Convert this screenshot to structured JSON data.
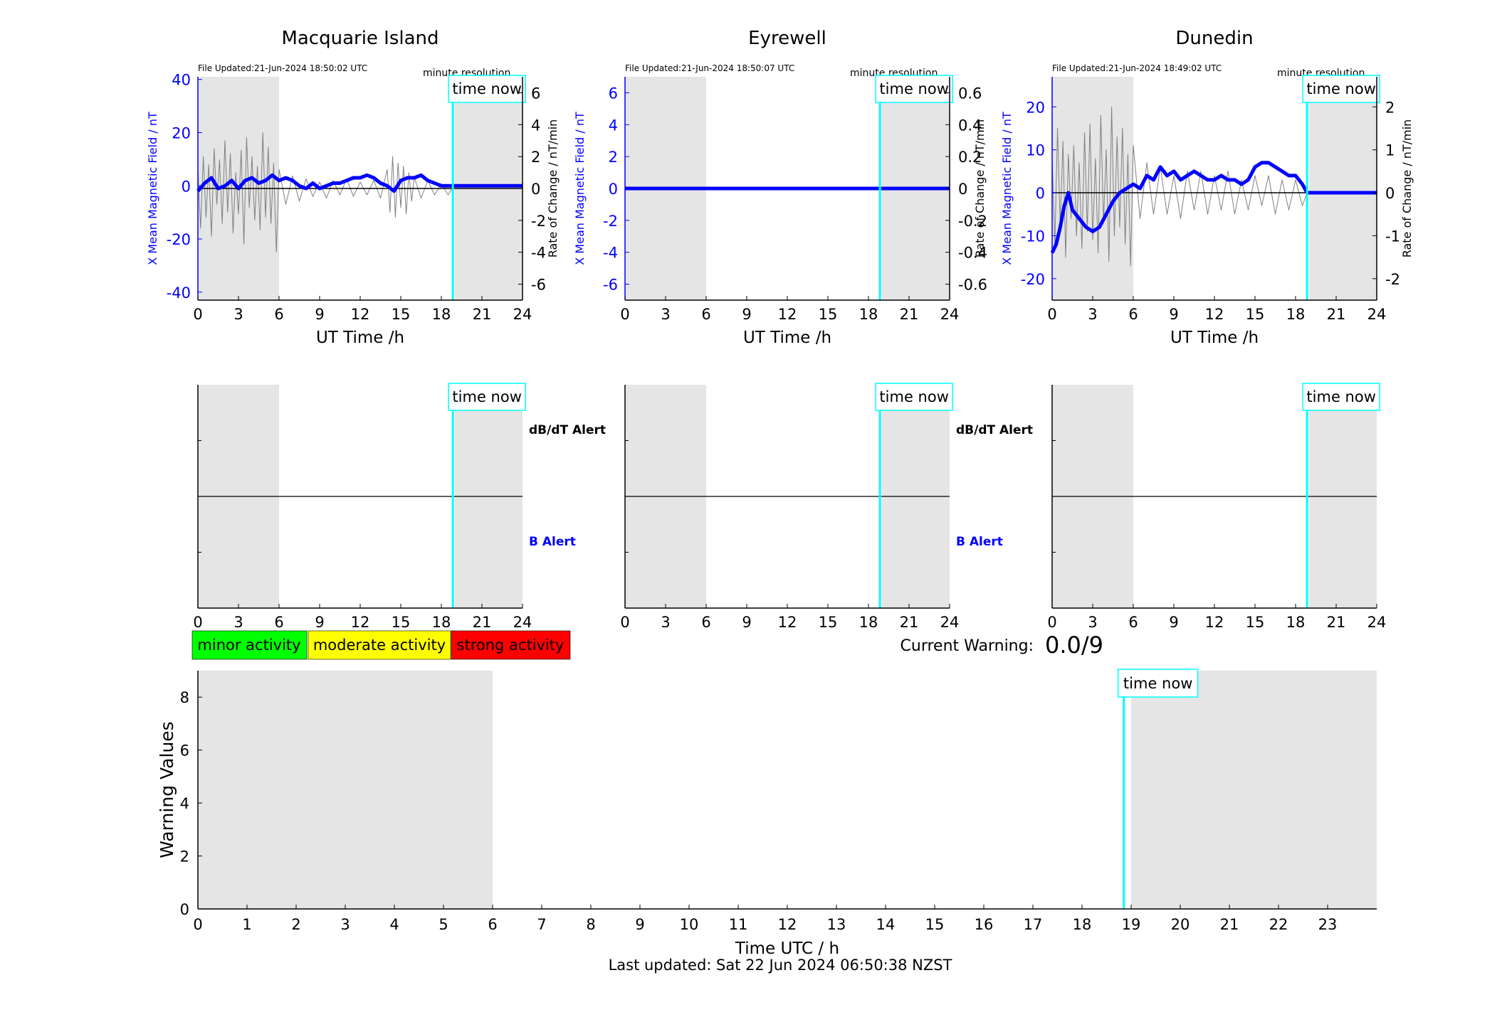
{
  "colors": {
    "field": "#0000ff",
    "rate": "#808080",
    "now_line": "#00ffff",
    "night_shade": "#e5e5e5",
    "minor": "#00ff00",
    "moderate": "#ffff00",
    "strong": "#ff0000"
  },
  "common": {
    "time_now_label": "time now",
    "minute_resolution": "minute resolution",
    "x_label": "UT Time /h",
    "left_y_label": "X Mean Magnetic Field / nT",
    "right_y_label": "Rate of Change / nT/min",
    "dbdt_alert_label": "dB/dT Alert",
    "b_alert_label": "B Alert"
  },
  "legend": {
    "minor": "minor activity",
    "moderate": "moderate activity",
    "strong": "strong activity"
  },
  "current_warning": {
    "label": "Current Warning:",
    "value": "0.0/9"
  },
  "footer": {
    "last_updated": "Last updated: Sat 22 Jun 2024 06:50:38 NZST"
  },
  "chart_data": [
    {
      "type": "line",
      "title": "Macquarie Island",
      "file_updated": "File Updated:21-Jun-2024 18:50:02 UTC",
      "xlabel": "UT Time /h",
      "ylabel": "X Mean Magnetic Field / nT",
      "ylabel_right": "Rate of Change / nT/min",
      "xlim": [
        0,
        24
      ],
      "xticks": [
        0,
        3,
        6,
        9,
        12,
        15,
        18,
        21,
        24
      ],
      "ylim": [
        -43,
        41
      ],
      "yticks": [
        -40,
        -20,
        0,
        20,
        40
      ],
      "ylim_right": [
        -7,
        7
      ],
      "yticks_right": [
        -6,
        -4,
        -2,
        0,
        2,
        4,
        6
      ],
      "night_bands": [
        [
          0,
          6
        ],
        [
          19,
          24
        ]
      ],
      "time_now": 18.85,
      "series": [
        {
          "name": "X Mean Magnetic Field / nT",
          "x": [
            0,
            0.5,
            1,
            1.5,
            2,
            2.5,
            3,
            3.5,
            4,
            4.5,
            5,
            5.5,
            6,
            6.5,
            7,
            7.5,
            8,
            8.5,
            9,
            9.5,
            10,
            10.5,
            11,
            11.5,
            12,
            12.5,
            13,
            13.5,
            14,
            14.5,
            15,
            15.5,
            16,
            16.5,
            17,
            17.5,
            18,
            18.5,
            18.85,
            24
          ],
          "values": [
            -2,
            1,
            3,
            -1,
            0,
            2,
            -1,
            2,
            3,
            1,
            2,
            4,
            2,
            3,
            2,
            0,
            -1,
            1,
            -1,
            0,
            1,
            1,
            2,
            3,
            3,
            4,
            3,
            1,
            0,
            -2,
            2,
            3,
            3,
            4,
            2,
            1,
            0,
            0,
            0,
            0
          ]
        },
        {
          "name": "Rate of Change / nT/min",
          "x": [
            0,
            0.2,
            0.4,
            0.6,
            0.8,
            1,
            1.2,
            1.4,
            1.6,
            1.8,
            2,
            2.2,
            2.4,
            2.6,
            2.8,
            3,
            3.2,
            3.4,
            3.6,
            3.8,
            4,
            4.2,
            4.4,
            4.6,
            4.8,
            5,
            5.2,
            5.4,
            5.6,
            5.8,
            6,
            6.5,
            7,
            7.5,
            8,
            8.5,
            9,
            9.5,
            10,
            10.5,
            11,
            11.5,
            12,
            12.5,
            13,
            13.5,
            14,
            14.2,
            14.4,
            14.6,
            14.8,
            15,
            15.2,
            15.4,
            15.6,
            15.8,
            16,
            16.5,
            17,
            17.5,
            18,
            18.5,
            18.85
          ],
          "values": [
            1.2,
            -2.5,
            2.0,
            -1.8,
            1.5,
            -3.0,
            2.5,
            -1.0,
            1.8,
            -2.2,
            3.0,
            -1.5,
            2.2,
            -2.8,
            1.0,
            -1.6,
            2.4,
            -3.5,
            3.2,
            -1.2,
            2.0,
            -2.0,
            1.4,
            -2.6,
            3.5,
            -1.8,
            2.6,
            -2.2,
            1.6,
            -4.0,
            1.2,
            -1.0,
            0.8,
            -0.8,
            0.6,
            -0.5,
            0.4,
            -0.6,
            0.5,
            -0.4,
            0.6,
            -0.5,
            0.4,
            -0.4,
            0.5,
            -0.6,
            1.2,
            -1.5,
            2.0,
            -1.8,
            1.6,
            -1.2,
            1.4,
            -1.6,
            1.0,
            -0.8,
            0.7,
            -0.6,
            0.5,
            -0.4,
            0.3,
            -0.4,
            0.1
          ]
        }
      ]
    },
    {
      "type": "line",
      "title": "Eyrewell",
      "file_updated": "File Updated:21-Jun-2024 18:50:07 UTC",
      "xlabel": "UT Time /h",
      "ylabel": "X Mean Magnetic Field / nT",
      "ylabel_right": "Rate of Change / nT/min",
      "xlim": [
        0,
        24
      ],
      "xticks": [
        0,
        3,
        6,
        9,
        12,
        15,
        18,
        21,
        24
      ],
      "ylim": [
        -7,
        7
      ],
      "yticks": [
        -6,
        -4,
        -2,
        0,
        2,
        4,
        6
      ],
      "ylim_right": [
        -0.7,
        0.7
      ],
      "yticks_right": [
        -0.6,
        -0.4,
        -0.2,
        0,
        0.2,
        0.4,
        0.6
      ],
      "night_bands": [
        [
          0,
          6
        ],
        [
          19,
          24
        ]
      ],
      "time_now": 18.85,
      "series": [
        {
          "name": "X Mean Magnetic Field / nT",
          "x": [
            0,
            24
          ],
          "values": [
            0,
            0
          ]
        },
        {
          "name": "Rate of Change / nT/min",
          "x": [
            0,
            24
          ],
          "values": [
            0,
            0
          ]
        }
      ]
    },
    {
      "type": "line",
      "title": "Dunedin",
      "file_updated": "File Updated:21-Jun-2024 18:49:02 UTC",
      "xlabel": "UT Time /h",
      "ylabel": "X Mean Magnetic Field / nT",
      "ylabel_right": "Rate of Change / nT/min",
      "xlim": [
        0,
        24
      ],
      "xticks": [
        0,
        3,
        6,
        9,
        12,
        15,
        18,
        21,
        24
      ],
      "ylim": [
        -25,
        27
      ],
      "yticks": [
        -20,
        -10,
        0,
        10,
        20
      ],
      "ylim_right": [
        -2.5,
        2.7
      ],
      "yticks_right": [
        -2,
        -1,
        0,
        1,
        2
      ],
      "night_bands": [
        [
          0,
          6
        ],
        [
          19,
          24
        ]
      ],
      "time_now": 18.85,
      "series": [
        {
          "name": "X Mean Magnetic Field / nT",
          "x": [
            0,
            0.3,
            0.6,
            0.9,
            1.2,
            1.5,
            2,
            2.5,
            3,
            3.5,
            4,
            4.5,
            5,
            5.5,
            6,
            6.5,
            7,
            7.5,
            8,
            8.5,
            9,
            9.5,
            10,
            10.5,
            11,
            11.5,
            12,
            12.5,
            13,
            13.5,
            14,
            14.5,
            15,
            15.5,
            16,
            16.5,
            17,
            17.5,
            18,
            18.5,
            18.85,
            24
          ],
          "values": [
            -14,
            -12,
            -8,
            -3,
            0,
            -4,
            -6,
            -8,
            -9,
            -8,
            -5,
            -2,
            0,
            1,
            2,
            1,
            4,
            3,
            6,
            4,
            5,
            3,
            4,
            5,
            4,
            3,
            3,
            4,
            3,
            3,
            2,
            3,
            6,
            7,
            7,
            6,
            5,
            4,
            4,
            2,
            0,
            0
          ]
        },
        {
          "name": "Rate of Change / nT/min",
          "x": [
            0,
            0.2,
            0.4,
            0.6,
            0.8,
            1,
            1.2,
            1.4,
            1.6,
            1.8,
            2,
            2.2,
            2.4,
            2.6,
            2.8,
            3,
            3.2,
            3.4,
            3.6,
            3.8,
            4,
            4.2,
            4.4,
            4.6,
            4.8,
            5,
            5.2,
            5.4,
            5.6,
            5.8,
            6,
            6.5,
            7,
            7.5,
            8,
            8.5,
            9,
            9.5,
            10,
            10.5,
            11,
            11.5,
            12,
            12.5,
            13,
            13.5,
            14,
            14.5,
            15,
            15.5,
            16,
            16.5,
            17,
            17.5,
            18,
            18.5,
            18.85
          ],
          "values": [
            0.8,
            -1.2,
            1.5,
            -0.8,
            1.2,
            -1.5,
            0.9,
            -0.6,
            1.1,
            -1.0,
            0.7,
            -1.3,
            1.4,
            -0.9,
            1.6,
            -1.1,
            0.8,
            -1.4,
            1.8,
            -0.7,
            1.0,
            -1.6,
            2.0,
            -1.0,
            1.3,
            -0.8,
            1.5,
            -1.2,
            0.9,
            -1.7,
            1.1,
            -0.6,
            0.7,
            -0.5,
            0.6,
            -0.5,
            0.4,
            -0.6,
            0.5,
            -0.4,
            0.5,
            -0.5,
            0.4,
            -0.4,
            0.5,
            -0.5,
            0.3,
            -0.4,
            0.4,
            -0.3,
            0.4,
            -0.5,
            0.3,
            -0.4,
            0.3,
            -0.3,
            0.0
          ]
        }
      ]
    },
    {
      "type": "line",
      "title": "",
      "site": "Macquarie Island",
      "xlim": [
        0,
        24
      ],
      "xticks": [
        0,
        3,
        6,
        9,
        12,
        15,
        18,
        21,
        24
      ],
      "ylim": [
        0,
        1
      ],
      "night_bands": [
        [
          0,
          6
        ],
        [
          19,
          24
        ]
      ],
      "time_now": 18.85,
      "alert_labels": [
        "dB/dT Alert",
        "B Alert"
      ],
      "series": [
        {
          "name": "",
          "x": [
            0,
            24
          ],
          "values": [
            0.5,
            0.5
          ]
        }
      ]
    },
    {
      "type": "line",
      "title": "",
      "site": "Eyrewell",
      "xlim": [
        0,
        24
      ],
      "xticks": [
        0,
        3,
        6,
        9,
        12,
        15,
        18,
        21,
        24
      ],
      "ylim": [
        0,
        1
      ],
      "night_bands": [
        [
          0,
          6
        ],
        [
          19,
          24
        ]
      ],
      "time_now": 18.85,
      "alert_labels": [
        "dB/dT Alert",
        "B Alert"
      ],
      "series": [
        {
          "name": "",
          "x": [
            0,
            24
          ],
          "values": [
            0.5,
            0.5
          ]
        }
      ]
    },
    {
      "type": "line",
      "title": "",
      "site": "Dunedin",
      "xlim": [
        0,
        24
      ],
      "xticks": [
        0,
        3,
        6,
        9,
        12,
        15,
        18,
        21,
        24
      ],
      "ylim": [
        0,
        1
      ],
      "night_bands": [
        [
          0,
          6
        ],
        [
          19,
          24
        ]
      ],
      "time_now": 18.85,
      "alert_labels": [],
      "series": [
        {
          "name": "",
          "x": [
            0,
            24
          ],
          "values": [
            0.5,
            0.5
          ]
        }
      ]
    },
    {
      "type": "bar",
      "title": "",
      "xlabel": "Time UTC / h",
      "ylabel": "Warning Values",
      "xlim": [
        0,
        24
      ],
      "xticks": [
        0,
        1,
        2,
        3,
        4,
        5,
        6,
        7,
        8,
        9,
        10,
        11,
        12,
        13,
        14,
        15,
        16,
        17,
        18,
        19,
        20,
        21,
        22,
        23
      ],
      "ylim": [
        0,
        9
      ],
      "yticks": [
        0,
        2,
        4,
        6,
        8
      ],
      "night_bands": [
        [
          0,
          6
        ],
        [
          19,
          24
        ]
      ],
      "time_now": 18.85,
      "series": [
        {
          "name": "",
          "x": [],
          "values": []
        }
      ]
    }
  ]
}
